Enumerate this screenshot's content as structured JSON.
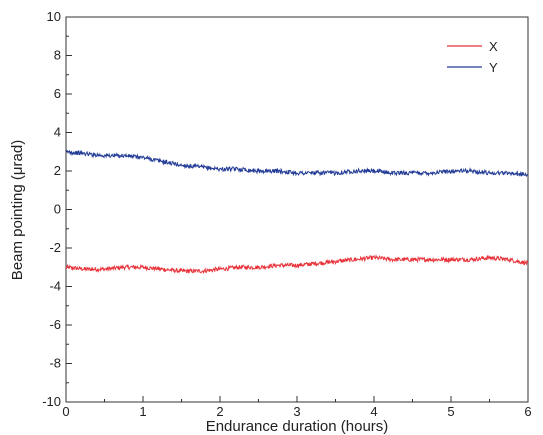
{
  "chart_data": {
    "type": "line",
    "title": "",
    "xlabel": "Endurance duration (hours)",
    "ylabel": "Beam pointing (μrad)",
    "xlim": [
      0,
      6
    ],
    "ylim": [
      -10,
      10
    ],
    "x_ticks": [
      "0",
      "1",
      "2",
      "3",
      "4",
      "5",
      "6"
    ],
    "y_ticks": [
      "-10",
      "-8",
      "-6",
      "-4",
      "-2",
      "0",
      "2",
      "4",
      "6",
      "8",
      "10"
    ],
    "legend_position": "top-right",
    "grid": false,
    "series": [
      {
        "name": "X",
        "color": "#e8333a",
        "x": [
          0,
          0.25,
          0.5,
          0.75,
          1.0,
          1.25,
          1.5,
          1.75,
          2.0,
          2.25,
          2.5,
          2.75,
          3.0,
          3.25,
          3.5,
          3.75,
          4.0,
          4.25,
          4.5,
          4.75,
          5.0,
          5.25,
          5.5,
          5.75,
          6.0
        ],
        "values": [
          -3.0,
          -3.1,
          -3.1,
          -3.0,
          -3.0,
          -3.1,
          -3.2,
          -3.2,
          -3.1,
          -3.0,
          -3.0,
          -2.9,
          -2.9,
          -2.8,
          -2.7,
          -2.6,
          -2.5,
          -2.6,
          -2.6,
          -2.6,
          -2.6,
          -2.6,
          -2.5,
          -2.6,
          -2.8
        ]
      },
      {
        "name": "Y",
        "color": "#233c96",
        "x": [
          0,
          0.25,
          0.5,
          0.75,
          1.0,
          1.25,
          1.5,
          1.75,
          2.0,
          2.25,
          2.5,
          2.75,
          3.0,
          3.25,
          3.5,
          3.75,
          4.0,
          4.25,
          4.5,
          4.75,
          5.0,
          5.25,
          5.5,
          5.75,
          6.0
        ],
        "values": [
          3.0,
          2.9,
          2.8,
          2.8,
          2.7,
          2.5,
          2.3,
          2.2,
          2.1,
          2.1,
          2.0,
          2.0,
          1.9,
          1.9,
          1.9,
          2.0,
          2.0,
          1.9,
          1.9,
          1.9,
          2.0,
          2.0,
          1.9,
          1.9,
          1.8
        ]
      }
    ]
  }
}
